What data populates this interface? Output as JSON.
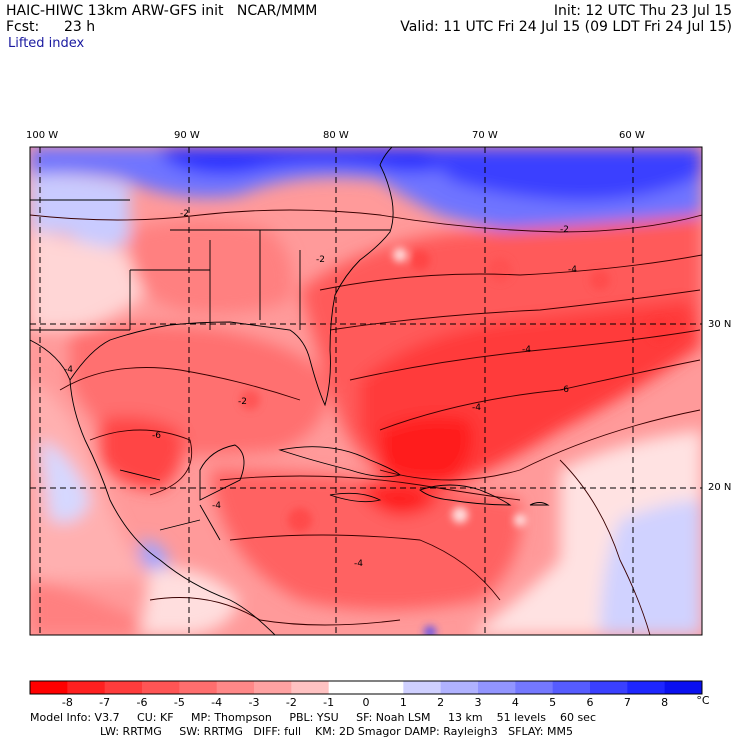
{
  "header": {
    "model_line": "HAIC-HIWC 13km ARW-GFS init   NCAR/MMM",
    "fcst_label": "Fcst:",
    "fcst_value": "23 h",
    "field": "Lifted index",
    "init": "Init: 12 UTC Thu 23 Jul 15",
    "valid": "Valid: 11 UTC Fri 24 Jul 15 (09 LDT Fri 24 Jul 15)"
  },
  "map": {
    "longitude_labels": [
      "100 W",
      "90 W",
      "80 W",
      "70 W",
      "60 W"
    ],
    "latitude_labels": [
      "30 N",
      "20 N"
    ],
    "contour_labels": [
      "-2",
      "-2",
      "-2",
      "-4",
      "-4",
      "-4",
      "-6",
      "-6",
      "-4",
      "-2",
      "-4",
      "-4"
    ]
  },
  "colorbar": {
    "ticks": [
      "-8",
      "-7",
      "-6",
      "-5",
      "-4",
      "-3",
      "-2",
      "-1",
      "0",
      "1",
      "2",
      "3",
      "4",
      "5",
      "6",
      "7",
      "8"
    ],
    "unit": "°C",
    "colors": [
      "#ff0000",
      "#ff2020",
      "#ff3c3c",
      "#ff5555",
      "#ff6e6e",
      "#ff8888",
      "#ffa2a2",
      "#ffc2c2",
      "#ffffff",
      "#cfd0ff",
      "#b0b2ff",
      "#9295ff",
      "#7478ff",
      "#565cff",
      "#3a40ff",
      "#1e26ff",
      "#0a10f0"
    ]
  },
  "footer": {
    "line1": "Model Info: V3.7     CU: KF     MP: Thompson     PBL: YSU     SF: Noah LSM     13 km    51 levels    60 sec",
    "line2": "LW: RRTMG     SW: RRTMG   DIFF: full    KM: 2D Smagor DAMP: Rayleigh3   SFLAY: MM5"
  }
}
